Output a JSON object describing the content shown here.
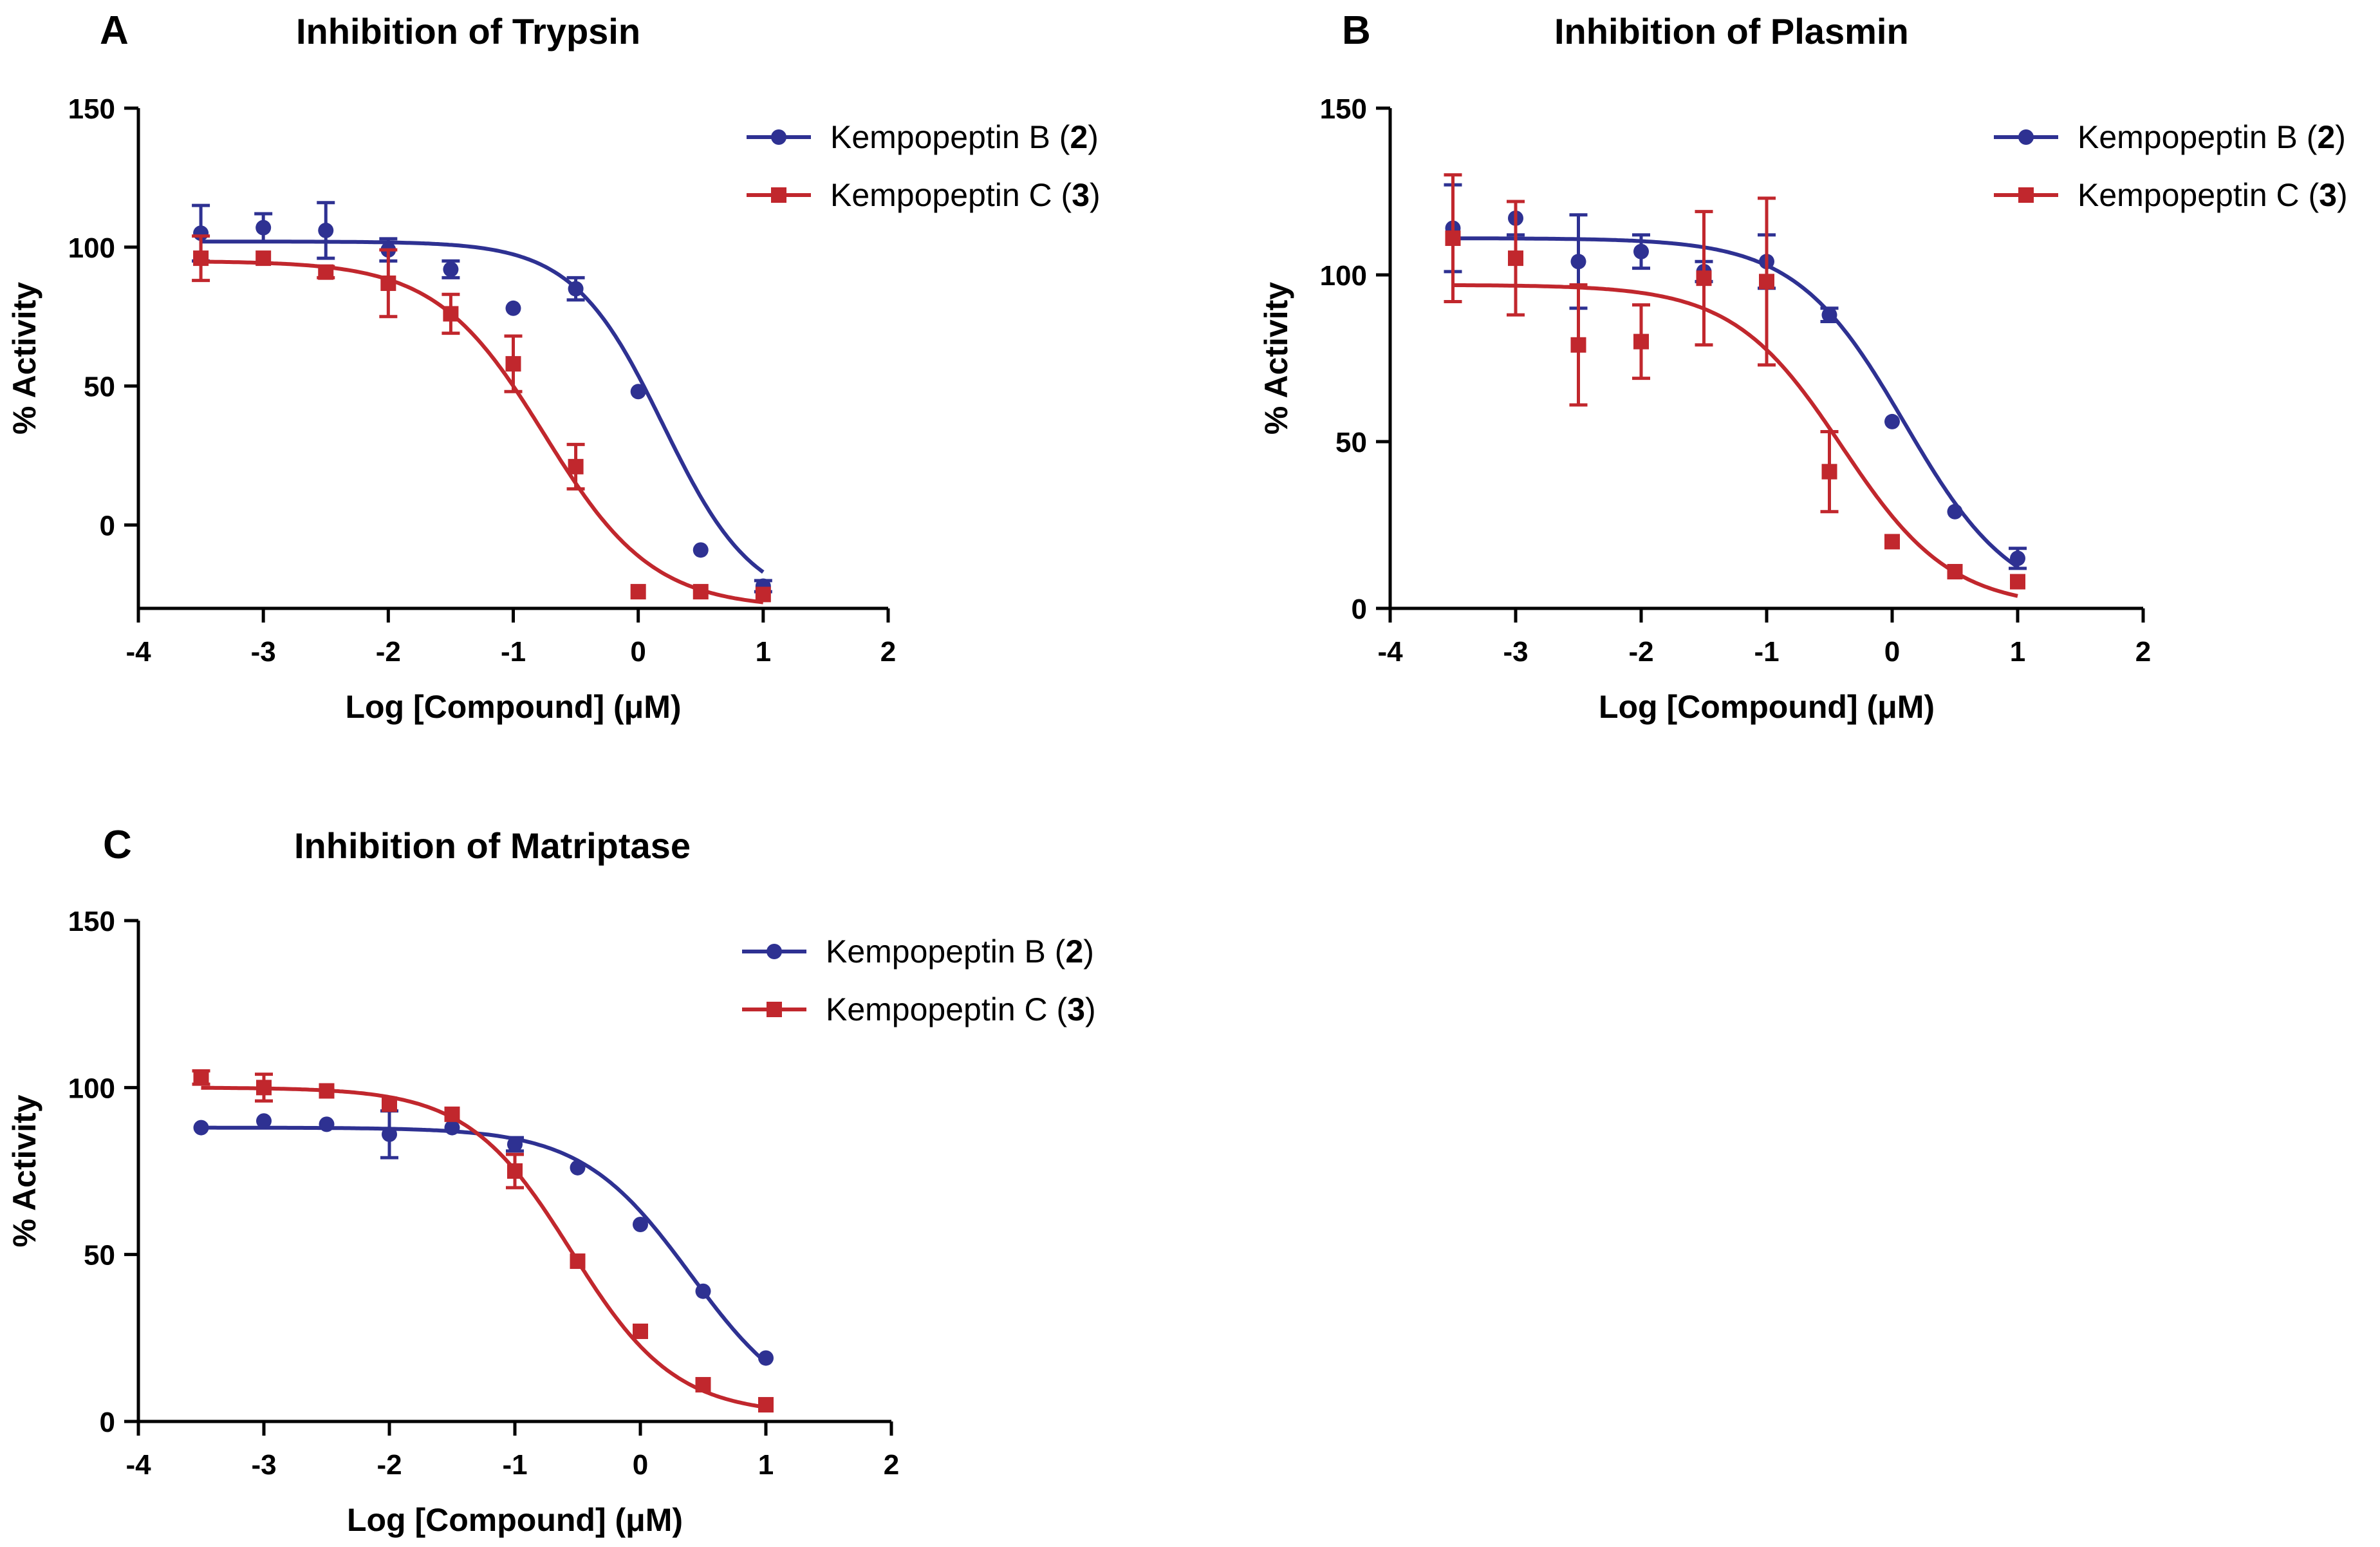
{
  "chart_data": [
    {
      "panel": "A",
      "type": "scatter",
      "title": "Inhibition of Trypsin",
      "xlabel": "Log [Compound] (μM)",
      "ylabel": "% Activity",
      "xlim": [
        -4,
        2
      ],
      "ylim": [
        -30,
        150
      ],
      "xticks": [
        "-4",
        "-3",
        "-2",
        "-1",
        "0",
        "1",
        "2"
      ],
      "yticks": [
        "0",
        "50",
        "100",
        "150"
      ],
      "legend_position": "top-right",
      "series": [
        {
          "name": "Kempopeptin B",
          "compound_number": "2",
          "color": "#2e3192",
          "marker": "circle",
          "x": [
            -3.5,
            -3,
            -2.5,
            -2,
            -1.5,
            -1,
            -0.5,
            0,
            0.5,
            1
          ],
          "y": [
            105,
            107,
            106,
            99,
            92,
            78,
            85,
            48,
            -9,
            -22
          ],
          "error": [
            10,
            5,
            10,
            4,
            3,
            0,
            4,
            0,
            0,
            2
          ],
          "fit": {
            "top": 102,
            "bottom": -30,
            "logIC50": 0.2,
            "hill": 1.2
          }
        },
        {
          "name": "Kempopeptin C",
          "compound_number": "3",
          "color": "#c1272d",
          "marker": "square",
          "x": [
            -3.5,
            -3,
            -2.5,
            -2,
            -1.5,
            -1,
            -0.5,
            0,
            0.5,
            1
          ],
          "y": [
            96,
            96,
            91,
            87,
            76,
            58,
            21,
            -24,
            -24,
            -25
          ],
          "error": [
            8,
            0,
            2,
            12,
            7,
            10,
            8,
            0,
            0,
            0
          ],
          "fit": {
            "top": 95,
            "bottom": -30,
            "logIC50": -0.75,
            "hill": 1.0
          }
        }
      ]
    },
    {
      "panel": "B",
      "type": "scatter",
      "title": "Inhibition of Plasmin",
      "xlabel": "Log [Compound] (μM)",
      "ylabel": "% Activity",
      "xlim": [
        -4,
        2
      ],
      "ylim": [
        0,
        150
      ],
      "xticks": [
        "-4",
        "-3",
        "-2",
        "-1",
        "0",
        "1",
        "2"
      ],
      "yticks": [
        "0",
        "50",
        "100",
        "150"
      ],
      "legend_position": "top-right",
      "series": [
        {
          "name": "Kempopeptin B",
          "compound_number": "2",
          "color": "#2e3192",
          "marker": "circle",
          "x": [
            -3.5,
            -3,
            -2.5,
            -2,
            -1.5,
            -1,
            -0.5,
            0,
            0.5,
            1
          ],
          "y": [
            114,
            117,
            104,
            107,
            101,
            104,
            88,
            56,
            29,
            15
          ],
          "error": [
            13,
            5,
            14,
            5,
            3,
            8,
            2,
            0,
            0,
            3
          ],
          "fit": {
            "top": 111,
            "bottom": 0,
            "logIC50": 0.1,
            "hill": 1.0
          }
        },
        {
          "name": "Kempopeptin C",
          "compound_number": "3",
          "color": "#c1272d",
          "marker": "square",
          "x": [
            -3.5,
            -3,
            -2.5,
            -2,
            -1.5,
            -1,
            -0.5,
            0,
            0.5,
            1
          ],
          "y": [
            111,
            105,
            79,
            80,
            99,
            98,
            41,
            20,
            11,
            8
          ],
          "error": [
            19,
            17,
            18,
            11,
            20,
            25,
            12,
            0,
            0,
            0
          ],
          "fit": {
            "top": 97,
            "bottom": 0,
            "logIC50": -0.4,
            "hill": 1.0
          }
        }
      ]
    },
    {
      "panel": "C",
      "type": "scatter",
      "title": "Inhibition of Matriptase",
      "xlabel": "Log [Compound] (μM)",
      "ylabel": "% Activity",
      "xlim": [
        -4,
        2
      ],
      "ylim": [
        0,
        150
      ],
      "xticks": [
        "-4",
        "-3",
        "-2",
        "-1",
        "0",
        "1",
        "2"
      ],
      "yticks": [
        "0",
        "50",
        "100",
        "150"
      ],
      "legend_position": "top-right",
      "series": [
        {
          "name": "Kempopeptin B",
          "compound_number": "2",
          "color": "#2e3192",
          "marker": "circle",
          "x": [
            -3.5,
            -3,
            -2.5,
            -2,
            -1.5,
            -1,
            -0.5,
            0,
            0.5,
            1
          ],
          "y": [
            88,
            90,
            89,
            86,
            88,
            83,
            76,
            59,
            39,
            19
          ],
          "error": [
            0,
            0,
            0,
            7,
            0,
            2,
            0,
            0,
            0,
            0
          ],
          "fit": {
            "top": 88,
            "bottom": 0,
            "logIC50": 0.4,
            "hill": 1.0
          }
        },
        {
          "name": "Kempopeptin C",
          "compound_number": "3",
          "color": "#c1272d",
          "marker": "square",
          "x": [
            -3.5,
            -3,
            -2.5,
            -2,
            -1.5,
            -1,
            -0.5,
            0,
            0.5,
            1
          ],
          "y": [
            103,
            100,
            99,
            95,
            92,
            75,
            48,
            27,
            11,
            5
          ],
          "error": [
            2,
            4,
            0,
            0,
            0,
            5,
            0,
            0,
            0,
            0
          ],
          "fit": {
            "top": 100,
            "bottom": 2,
            "logIC50": -0.55,
            "hill": 1.05
          }
        }
      ]
    }
  ]
}
